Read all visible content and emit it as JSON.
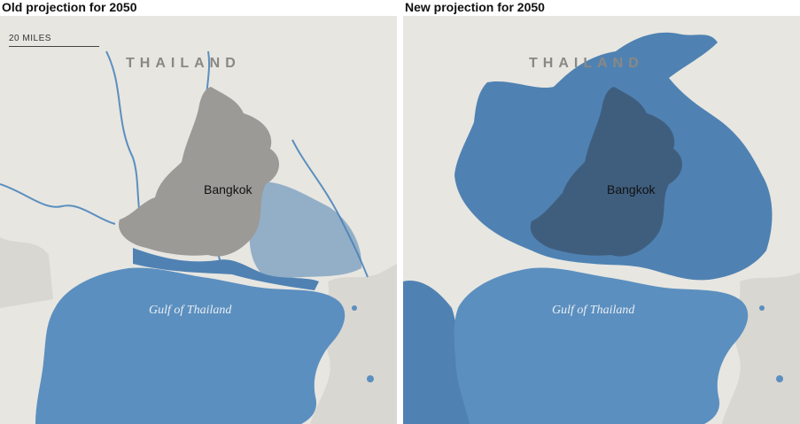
{
  "panels": {
    "left": {
      "title": "Old projection for 2050"
    },
    "right": {
      "title": "New projection for 2050"
    }
  },
  "labels": {
    "country": "THAILAND",
    "city": "Bangkok",
    "water": "Gulf of Thailand",
    "scale": "20 MILES"
  },
  "colors": {
    "land": "#e7e6e1",
    "land_relief": "#d9d7d1",
    "sea": "#5b8fbf",
    "flood": "#4f82b2",
    "urban": "#9b9a97",
    "urban_flooded": "#3f5e7e",
    "river": "#5b8fbf"
  }
}
